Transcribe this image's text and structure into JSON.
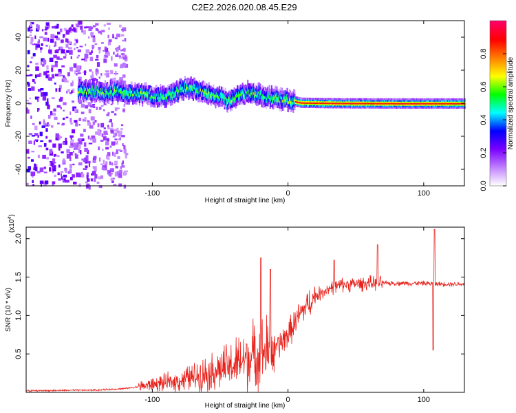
{
  "chart_data": [
    {
      "type": "heatmap",
      "title": "C2E2.2026.020.08.45.E29",
      "xlabel": "Height of straight line (km)",
      "ylabel": "Frequency (Hz)",
      "xlim": [
        -193,
        130
      ],
      "ylim": [
        -50,
        50
      ],
      "xticks": [
        -100,
        0,
        100
      ],
      "xtick_labels": [
        "-100",
        "0",
        "100"
      ],
      "yticks": [
        -40,
        -20,
        0,
        20,
        40
      ],
      "ytick_labels": [
        "-40",
        "-20",
        "0",
        "20",
        "40"
      ],
      "colorbar": {
        "label": "Normalized spectral amplitude",
        "range": [
          0,
          1
        ],
        "ticks": [
          0.0,
          0.2,
          0.4,
          0.6,
          0.8
        ],
        "tick_labels": [
          "0.0",
          "0.2",
          "0.4",
          "0.6",
          "0.8"
        ],
        "colors": [
          "#ffffff",
          "#c080ff",
          "#7a00ff",
          "#0000ff",
          "#00ffff",
          "#00ff00",
          "#ffff00",
          "#ff8000",
          "#ff0000",
          "#ff0066"
        ]
      },
      "ridge": {
        "x": [
          -155,
          -130,
          -110,
          -90,
          -75,
          -60,
          -45,
          -30,
          -15,
          0,
          10,
          40,
          80,
          130
        ],
        "y": [
          8,
          7,
          6,
          4,
          10,
          6,
          2,
          7,
          4,
          2,
          0.5,
          0.2,
          0.1,
          0.1
        ]
      },
      "noise_region": {
        "x_from": -193,
        "x_to": -120
      }
    },
    {
      "type": "line",
      "xlabel": "Height of straight line (km)",
      "ylabel": "SNR (10 * v/v)",
      "multiplier_label": "(x10",
      "multiplier_exp": "4",
      "multiplier_close": ")",
      "xlim": [
        -193,
        130
      ],
      "ylim": [
        0,
        2.15
      ],
      "xticks": [
        -100,
        0,
        100
      ],
      "xtick_labels": [
        "-100",
        "0",
        "100"
      ],
      "yticks": [
        0.5,
        1.0,
        1.5,
        2.0
      ],
      "ytick_labels": [
        "0.5",
        "1.0",
        "1.5",
        "2.0"
      ],
      "series_color": "#e8201a",
      "envelope_x": [
        -193,
        -140,
        -120,
        -100,
        -80,
        -60,
        -40,
        -30,
        -20,
        -10,
        0,
        10,
        20,
        30,
        40,
        60,
        80,
        100,
        110,
        130
      ],
      "envelope_y": [
        0.02,
        0.03,
        0.05,
        0.1,
        0.15,
        0.25,
        0.35,
        0.45,
        0.5,
        0.55,
        0.75,
        1.05,
        1.25,
        1.35,
        1.4,
        1.42,
        1.42,
        1.42,
        1.41,
        1.41
      ],
      "spikes": [
        {
          "x": -20,
          "y": 1.75
        },
        {
          "x": -13,
          "y": 1.6
        },
        {
          "x": 34,
          "y": 1.72
        },
        {
          "x": 66,
          "y": 1.92
        },
        {
          "x": 108,
          "y": 2.12
        },
        {
          "x": 107,
          "y": 0.55
        }
      ]
    }
  ]
}
